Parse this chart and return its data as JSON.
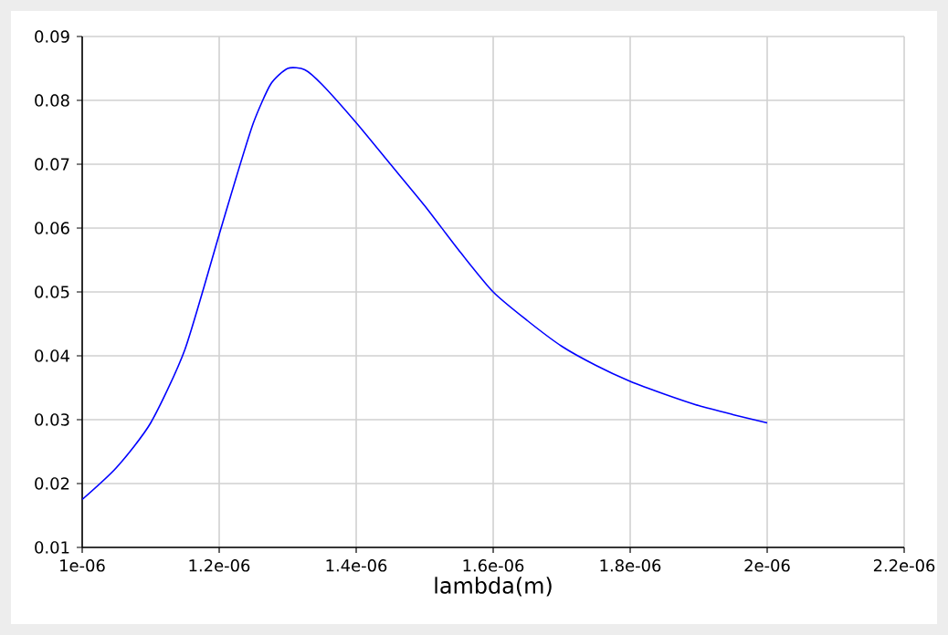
{
  "chart_data": {
    "type": "line",
    "xlabel": "lambda(m)",
    "x": [
      1e-06,
      1.05e-06,
      1.1e-06,
      1.15e-06,
      1.2e-06,
      1.225e-06,
      1.25e-06,
      1.275e-06,
      1.3e-06,
      1.325e-06,
      1.35e-06,
      1.4e-06,
      1.45e-06,
      1.5e-06,
      1.55e-06,
      1.6e-06,
      1.65e-06,
      1.7e-06,
      1.75e-06,
      1.8e-06,
      1.85e-06,
      1.9e-06,
      1.95e-06,
      2e-06
    ],
    "series": [
      {
        "color": "#0000ff",
        "values": [
          0.0175,
          0.0225,
          0.0295,
          0.041,
          0.059,
          0.068,
          0.0765,
          0.0825,
          0.085,
          0.0848,
          0.0825,
          0.0765,
          0.07,
          0.0635,
          0.0565,
          0.05,
          0.0455,
          0.0415,
          0.0385,
          0.036,
          0.034,
          0.0322,
          0.0308,
          0.0295
        ]
      }
    ],
    "xlim": [
      1e-06,
      2.2e-06
    ],
    "xticks": [
      {
        "value": 1e-06,
        "label": "1e-06"
      },
      {
        "value": 1.2e-06,
        "label": "1.2e-06"
      },
      {
        "value": 1.4e-06,
        "label": "1.4e-06"
      },
      {
        "value": 1.6e-06,
        "label": "1.6e-06"
      },
      {
        "value": 1.8e-06,
        "label": "1.8e-06"
      },
      {
        "value": 2e-06,
        "label": "2e-06"
      },
      {
        "value": 2.2e-06,
        "label": "2.2e-06"
      }
    ],
    "ylim": [
      0.01,
      0.09
    ],
    "yticks": [
      0.01,
      0.02,
      0.03,
      0.04,
      0.05,
      0.06,
      0.07,
      0.08,
      0.09
    ],
    "grid": true,
    "marker": "none",
    "line_style": "solid"
  }
}
